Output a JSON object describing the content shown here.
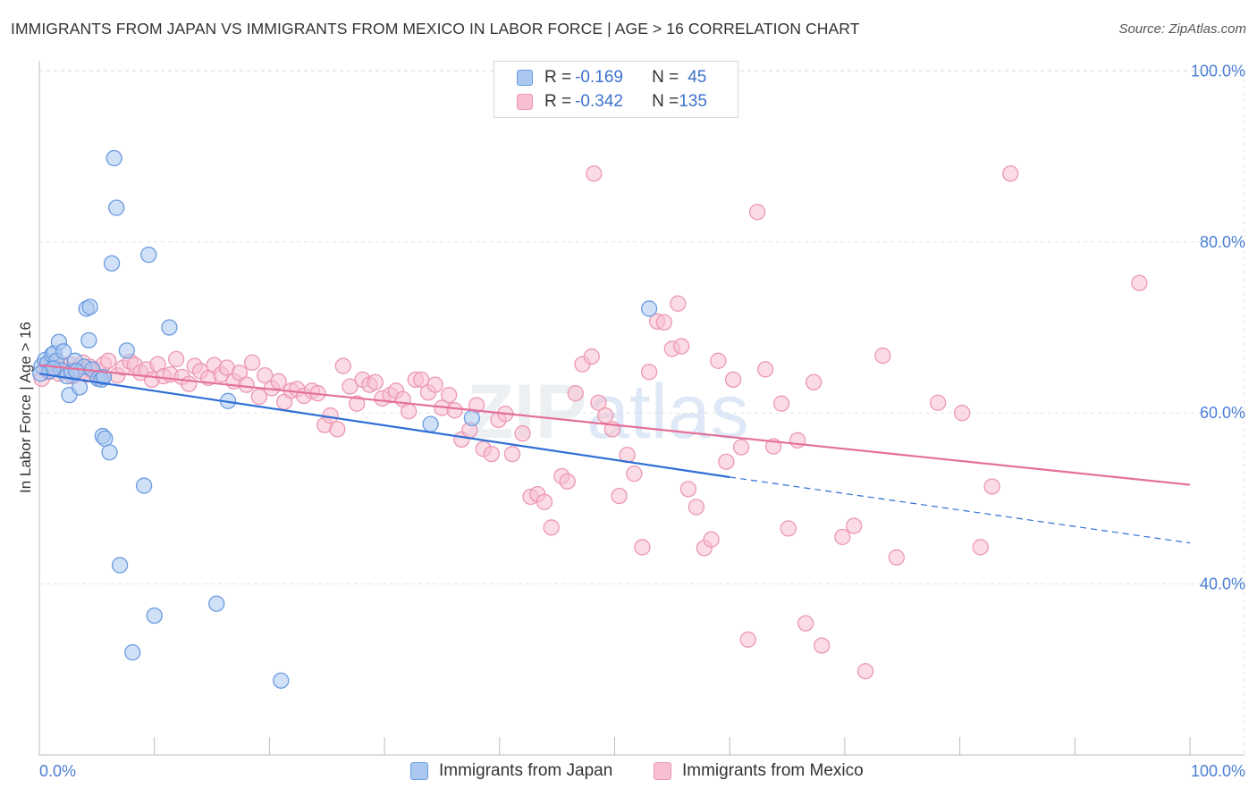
{
  "header": {
    "title": "IMMIGRANTS FROM JAPAN VS IMMIGRANTS FROM MEXICO IN LABOR FORCE | AGE > 16 CORRELATION CHART",
    "source": "Source: ZipAtlas.com"
  },
  "legend_top": {
    "rows": [
      {
        "r_label": "R = ",
        "r_value": "-0.169",
        "n_label": "N = ",
        "n_value": "45"
      },
      {
        "r_label": "R = ",
        "r_value": "-0.342",
        "n_label": "N = ",
        "n_value": "135"
      }
    ]
  },
  "legend_bottom": {
    "items": [
      "Immigrants from Japan",
      "Immigrants from Mexico"
    ]
  },
  "colors": {
    "japan_fill": "#aac8f0",
    "japan_stroke": "#6b9be0",
    "japan_line": "#2f6fd6",
    "mexico_fill": "#f7bfd0",
    "mexico_stroke": "#ec97b3",
    "mexico_line": "#e4709a",
    "tick_label": "#4a7fd4",
    "grid": "#e3e3e3"
  },
  "watermark": {
    "part1": "ZIP",
    "part2": "atlas"
  },
  "chart_data": {
    "type": "scatter",
    "title": "IMMIGRANTS FROM JAPAN VS IMMIGRANTS FROM MEXICO IN LABOR FORCE | AGE > 16 CORRELATION CHART",
    "xlabel": "",
    "ylabel": "In Labor Force | Age > 16",
    "xlim": [
      0,
      100
    ],
    "ylim": [
      20,
      100
    ],
    "x_tick_labels": [
      "0.0%",
      "100.0%"
    ],
    "y_ticks": [
      40,
      60,
      80,
      100
    ],
    "y_tick_labels": [
      "40.0%",
      "60.0%",
      "80.0%",
      "100.0%"
    ],
    "grid": true,
    "legend_position": "top-center",
    "series": [
      {
        "name": "Immigrants from Japan",
        "r": -0.169,
        "n": 45,
        "trend": {
          "x_start": 0,
          "y_start": 64.6,
          "x_solid_end": 60,
          "y_solid_end": 52.5,
          "x_dash_end": 100,
          "y_dash_end": 44.8
        },
        "points": [
          [
            0.2,
            65.5
          ],
          [
            0.5,
            66.2
          ],
          [
            0.7,
            65.8
          ],
          [
            0.9,
            64.9
          ],
          [
            1.1,
            66.8
          ],
          [
            1.3,
            67.0
          ],
          [
            1.5,
            66.1
          ],
          [
            1.7,
            68.3
          ],
          [
            1.9,
            65.0
          ],
          [
            2.1,
            67.2
          ],
          [
            2.4,
            64.3
          ],
          [
            2.6,
            62.1
          ],
          [
            2.8,
            64.8
          ],
          [
            3.1,
            66.1
          ],
          [
            3.5,
            63.0
          ],
          [
            3.9,
            65.4
          ],
          [
            4.3,
            68.5
          ],
          [
            4.1,
            72.2
          ],
          [
            4.4,
            72.4
          ],
          [
            4.6,
            65.1
          ],
          [
            5.1,
            64.0
          ],
          [
            5.4,
            63.9
          ],
          [
            5.6,
            64.2
          ],
          [
            5.5,
            57.3
          ],
          [
            5.7,
            57.0
          ],
          [
            6.1,
            55.4
          ],
          [
            6.3,
            77.5
          ],
          [
            6.5,
            89.8
          ],
          [
            6.7,
            84.0
          ],
          [
            7.0,
            42.2
          ],
          [
            7.6,
            67.3
          ],
          [
            8.1,
            32.0
          ],
          [
            9.1,
            51.5
          ],
          [
            9.5,
            78.5
          ],
          [
            10.0,
            36.3
          ],
          [
            11.3,
            70.0
          ],
          [
            15.4,
            37.7
          ],
          [
            16.4,
            61.4
          ],
          [
            21.0,
            28.7
          ],
          [
            34.0,
            58.7
          ],
          [
            37.6,
            59.4
          ],
          [
            53.0,
            72.2
          ],
          [
            1.2,
            65.2
          ],
          [
            3.2,
            64.9
          ],
          [
            0.1,
            64.6
          ]
        ]
      },
      {
        "name": "Immigrants from Mexico",
        "r": -0.342,
        "n": 135,
        "trend": {
          "x_start": 0,
          "y_start": 65.6,
          "x_end": 100,
          "y_end": 51.6
        },
        "points": [
          [
            0.2,
            64.0
          ],
          [
            0.5,
            65.2
          ],
          [
            0.8,
            64.8
          ],
          [
            1.1,
            65.8
          ],
          [
            1.4,
            65.3
          ],
          [
            1.7,
            64.6
          ],
          [
            2.0,
            65.5
          ],
          [
            2.3,
            64.9
          ],
          [
            2.6,
            65.7
          ],
          [
            2.9,
            64.3
          ],
          [
            3.2,
            65.1
          ],
          [
            3.5,
            64.7
          ],
          [
            3.8,
            65.9
          ],
          [
            4.1,
            64.5
          ],
          [
            4.4,
            65.4
          ],
          [
            4.7,
            64.8
          ],
          [
            5.0,
            65.0
          ],
          [
            5.3,
            64.2
          ],
          [
            5.6,
            65.7
          ],
          [
            6.0,
            66.1
          ],
          [
            6.8,
            64.4
          ],
          [
            7.3,
            65.3
          ],
          [
            7.9,
            66.0
          ],
          [
            8.3,
            65.6
          ],
          [
            8.8,
            64.7
          ],
          [
            9.3,
            65.1
          ],
          [
            9.8,
            63.9
          ],
          [
            10.3,
            65.7
          ],
          [
            10.8,
            64.3
          ],
          [
            11.4,
            64.5
          ],
          [
            11.9,
            66.3
          ],
          [
            12.4,
            64.2
          ],
          [
            13.0,
            63.4
          ],
          [
            13.5,
            65.5
          ],
          [
            14.0,
            64.9
          ],
          [
            14.7,
            64.1
          ],
          [
            15.2,
            65.6
          ],
          [
            15.8,
            64.5
          ],
          [
            16.3,
            65.3
          ],
          [
            16.9,
            63.7
          ],
          [
            17.4,
            64.7
          ],
          [
            18.0,
            63.3
          ],
          [
            18.5,
            65.9
          ],
          [
            19.1,
            61.9
          ],
          [
            19.6,
            64.4
          ],
          [
            20.2,
            62.9
          ],
          [
            20.8,
            63.7
          ],
          [
            21.3,
            61.3
          ],
          [
            21.9,
            62.6
          ],
          [
            22.4,
            62.8
          ],
          [
            23.0,
            62.0
          ],
          [
            23.7,
            62.6
          ],
          [
            24.2,
            62.3
          ],
          [
            24.8,
            58.6
          ],
          [
            25.3,
            59.7
          ],
          [
            25.9,
            58.1
          ],
          [
            26.4,
            65.5
          ],
          [
            27.0,
            63.1
          ],
          [
            27.6,
            61.1
          ],
          [
            28.1,
            63.9
          ],
          [
            28.7,
            63.3
          ],
          [
            29.2,
            63.6
          ],
          [
            29.8,
            61.7
          ],
          [
            30.5,
            62.1
          ],
          [
            31.0,
            62.6
          ],
          [
            31.6,
            61.6
          ],
          [
            32.1,
            60.2
          ],
          [
            32.7,
            63.9
          ],
          [
            33.2,
            63.9
          ],
          [
            33.8,
            62.4
          ],
          [
            34.4,
            63.3
          ],
          [
            35.0,
            60.6
          ],
          [
            35.6,
            62.1
          ],
          [
            36.1,
            60.3
          ],
          [
            36.7,
            56.9
          ],
          [
            37.4,
            58.0
          ],
          [
            38.0,
            60.9
          ],
          [
            38.6,
            55.8
          ],
          [
            39.3,
            55.2
          ],
          [
            39.9,
            59.2
          ],
          [
            40.5,
            59.9
          ],
          [
            41.1,
            55.2
          ],
          [
            42.0,
            57.6
          ],
          [
            42.7,
            50.2
          ],
          [
            43.3,
            50.5
          ],
          [
            43.9,
            49.6
          ],
          [
            44.5,
            46.6
          ],
          [
            45.4,
            52.6
          ],
          [
            45.9,
            52.0
          ],
          [
            46.6,
            62.3
          ],
          [
            47.2,
            65.7
          ],
          [
            48.0,
            66.6
          ],
          [
            48.6,
            61.2
          ],
          [
            49.2,
            59.7
          ],
          [
            49.8,
            58.1
          ],
          [
            50.4,
            50.3
          ],
          [
            51.1,
            55.1
          ],
          [
            51.7,
            52.9
          ],
          [
            52.4,
            44.3
          ],
          [
            53.0,
            64.8
          ],
          [
            53.7,
            70.7
          ],
          [
            54.3,
            70.6
          ],
          [
            55.0,
            67.5
          ],
          [
            55.8,
            67.8
          ],
          [
            56.4,
            51.1
          ],
          [
            57.1,
            49.0
          ],
          [
            57.8,
            44.2
          ],
          [
            58.4,
            45.2
          ],
          [
            59.0,
            66.1
          ],
          [
            59.7,
            54.3
          ],
          [
            60.3,
            63.9
          ],
          [
            61.0,
            56.0
          ],
          [
            61.6,
            33.5
          ],
          [
            62.4,
            83.5
          ],
          [
            63.1,
            65.1
          ],
          [
            63.8,
            56.1
          ],
          [
            64.5,
            61.1
          ],
          [
            65.1,
            46.5
          ],
          [
            65.9,
            56.8
          ],
          [
            66.6,
            35.4
          ],
          [
            67.3,
            63.6
          ],
          [
            68.0,
            32.8
          ],
          [
            69.8,
            45.5
          ],
          [
            70.8,
            46.8
          ],
          [
            71.8,
            29.8
          ],
          [
            73.3,
            66.7
          ],
          [
            74.5,
            43.1
          ],
          [
            78.1,
            61.2
          ],
          [
            80.2,
            60.0
          ],
          [
            81.8,
            44.3
          ],
          [
            82.8,
            51.4
          ],
          [
            84.4,
            88.0
          ],
          [
            95.6,
            75.2
          ],
          [
            48.2,
            88.0
          ],
          [
            55.5,
            72.8
          ]
        ]
      }
    ]
  }
}
